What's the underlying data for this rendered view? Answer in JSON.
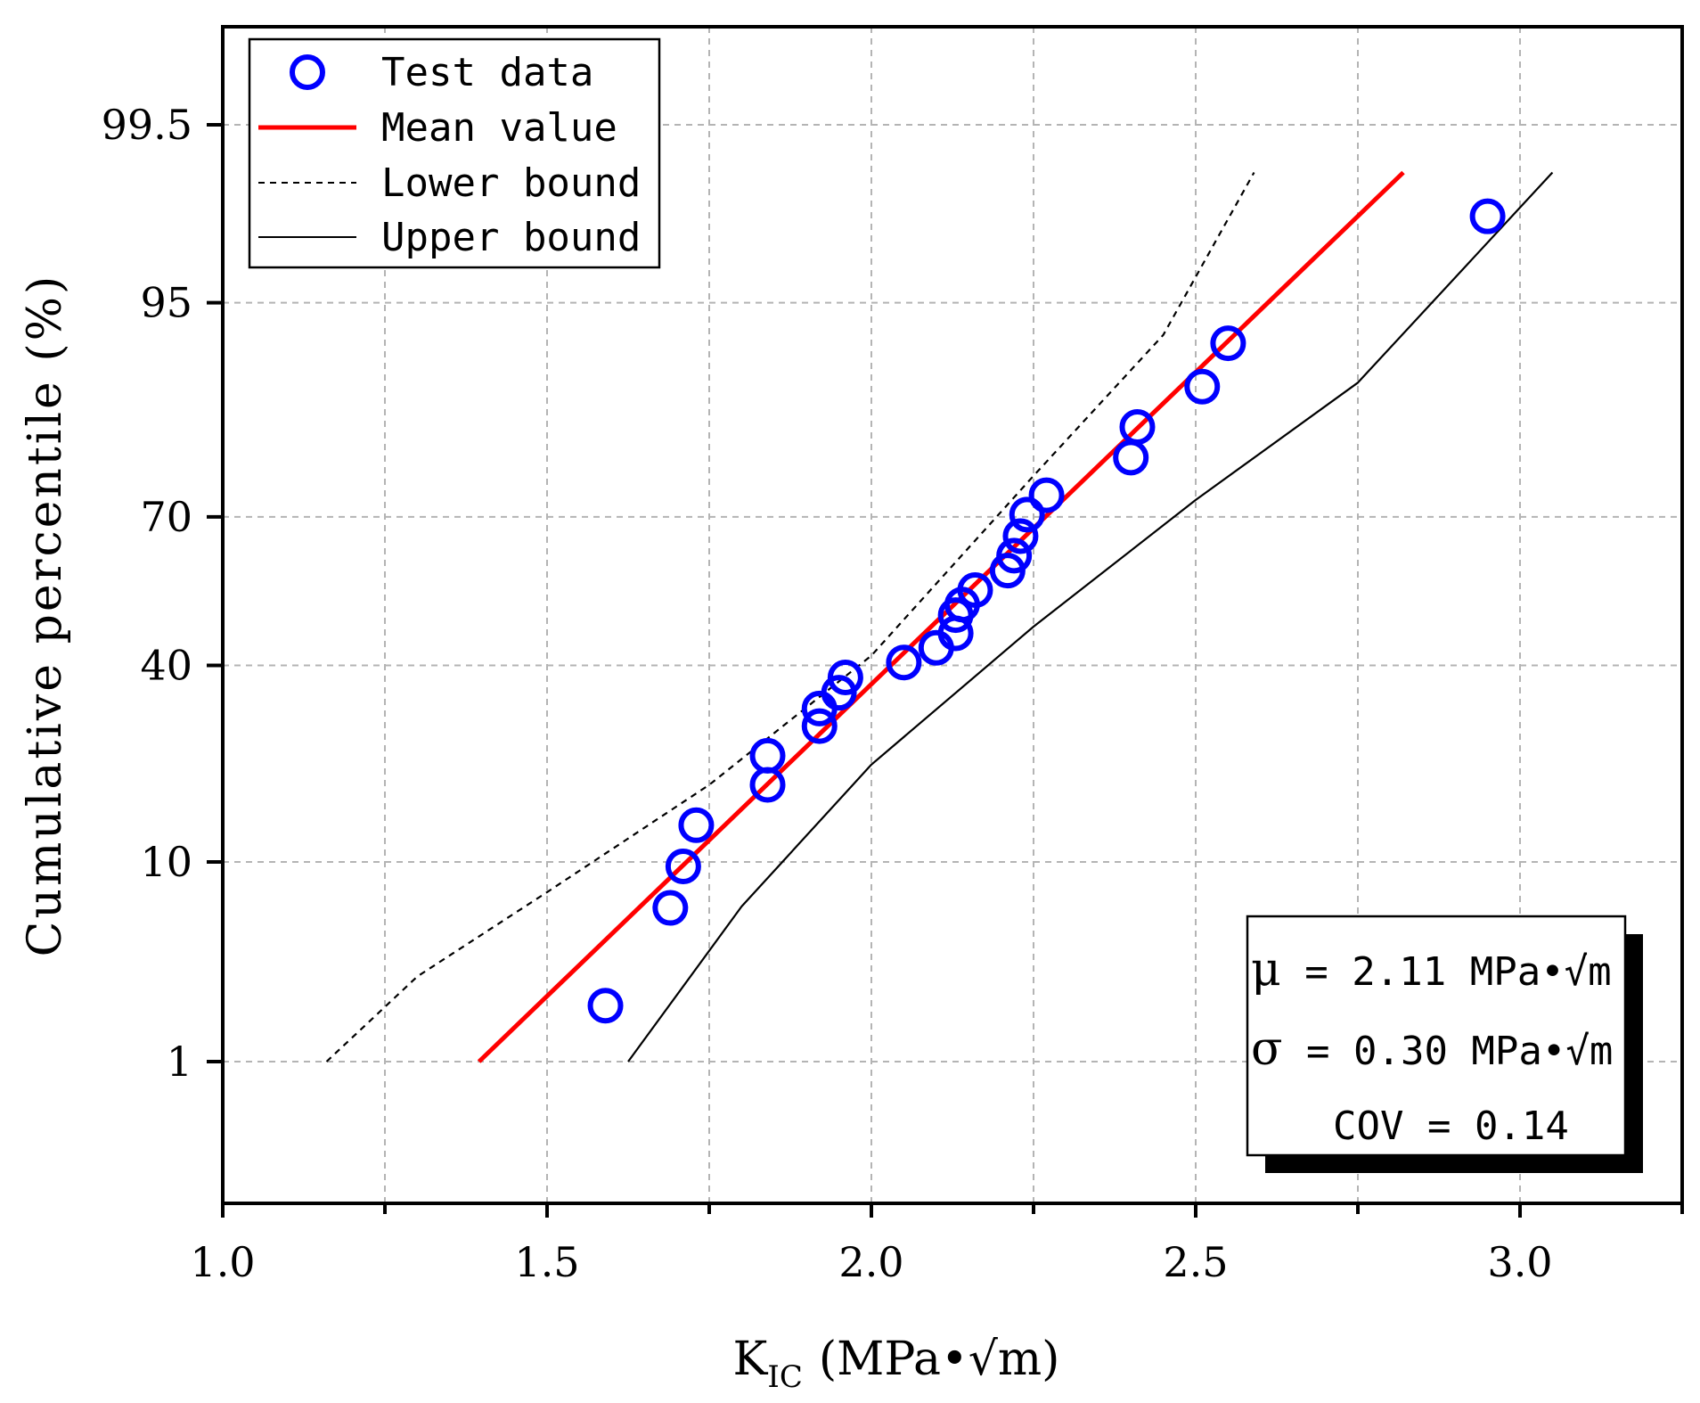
{
  "chart_data": {
    "type": "scatter",
    "title": "",
    "xlabel_main": "K",
    "xlabel_sub": "IC",
    "xlabel_unit": "(MPa•√m)",
    "ylabel": "Cumulative percentile (%)",
    "xlim": [
      1.0,
      3.25
    ],
    "x_ticks": [
      "1.0",
      "1.5",
      "2.0",
      "2.5",
      "3.0"
    ],
    "x_tick_values": [
      1.0,
      1.5,
      2.0,
      2.5,
      3.0
    ],
    "y_scale": "normal-probability",
    "y_ticks": [
      "1",
      "10",
      "40",
      "70",
      "95",
      "99.5"
    ],
    "y_tick_values": [
      1,
      10,
      40,
      70,
      95,
      99.5
    ],
    "grid": true,
    "legend_position": "top-left",
    "series": [
      {
        "name": "Test data",
        "kind": "markers",
        "color": "#0000ff",
        "marker": "hollow-circle",
        "points": [
          {
            "x": 1.59,
            "y": 2.1
          },
          {
            "x": 1.69,
            "y": 6.4
          },
          {
            "x": 1.71,
            "y": 9.6
          },
          {
            "x": 1.73,
            "y": 13.8
          },
          {
            "x": 1.84,
            "y": 19.0
          },
          {
            "x": 1.84,
            "y": 23.4
          },
          {
            "x": 1.92,
            "y": 28.4
          },
          {
            "x": 1.92,
            "y": 31.6
          },
          {
            "x": 1.95,
            "y": 34.6
          },
          {
            "x": 1.96,
            "y": 37.6
          },
          {
            "x": 2.05,
            "y": 40.6
          },
          {
            "x": 2.1,
            "y": 43.6
          },
          {
            "x": 2.13,
            "y": 46.6
          },
          {
            "x": 2.13,
            "y": 50.4
          },
          {
            "x": 2.14,
            "y": 52.6
          },
          {
            "x": 2.16,
            "y": 55.6
          },
          {
            "x": 2.21,
            "y": 59.6
          },
          {
            "x": 2.22,
            "y": 62.6
          },
          {
            "x": 2.23,
            "y": 66.4
          },
          {
            "x": 2.24,
            "y": 70.4
          },
          {
            "x": 2.27,
            "y": 73.8
          },
          {
            "x": 2.4,
            "y": 79.8
          },
          {
            "x": 2.41,
            "y": 84.0
          },
          {
            "x": 2.51,
            "y": 88.6
          },
          {
            "x": 2.55,
            "y": 92.4
          },
          {
            "x": 2.95,
            "y": 98.2
          }
        ]
      },
      {
        "name": "Mean value",
        "kind": "line",
        "color": "#ff0000",
        "dash": "solid",
        "points": [
          {
            "x": 1.395,
            "y": 1
          },
          {
            "x": 2.82,
            "y": 99
          }
        ]
      },
      {
        "name": "Lower bound",
        "kind": "line",
        "color": "#000000",
        "dash": "dashed",
        "points": [
          {
            "x": 1.16,
            "y": 1
          },
          {
            "x": 1.3,
            "y": 3
          },
          {
            "x": 1.5,
            "y": 7.5
          },
          {
            "x": 1.75,
            "y": 19
          },
          {
            "x": 2.0,
            "y": 42
          },
          {
            "x": 2.25,
            "y": 77
          },
          {
            "x": 2.45,
            "y": 93
          },
          {
            "x": 2.59,
            "y": 99
          }
        ]
      },
      {
        "name": "Upper bound",
        "kind": "line",
        "color": "#000000",
        "dash": "solid",
        "points": [
          {
            "x": 1.625,
            "y": 1
          },
          {
            "x": 1.8,
            "y": 6.5
          },
          {
            "x": 2.0,
            "y": 22
          },
          {
            "x": 2.25,
            "y": 48
          },
          {
            "x": 2.5,
            "y": 73
          },
          {
            "x": 2.75,
            "y": 89
          },
          {
            "x": 3.05,
            "y": 99
          }
        ]
      }
    ],
    "stats": {
      "mu_symbol": "μ",
      "mu_text": " = 2.11 MPa•√m",
      "sigma_symbol": "σ",
      "sigma_text": " = 0.30 MPa•√m",
      "cov_text": "COV = 0.14"
    }
  }
}
